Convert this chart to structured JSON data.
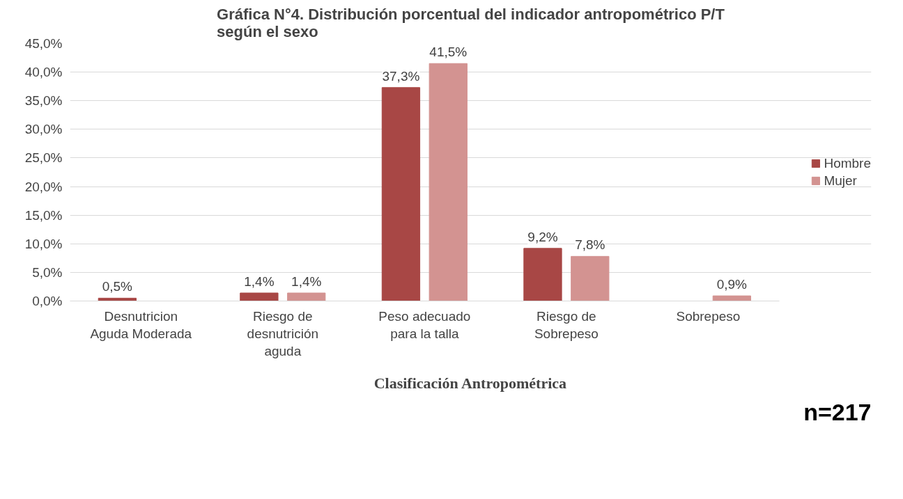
{
  "chart_data": {
    "type": "bar",
    "title": "Gráfica N°4. Distribución porcentual del indicador antropométrico P/T\nsegún el sexo",
    "xlabel": "Clasificación Antropométrica",
    "categories": [
      "Desnutricion\nAguda Moderada",
      "Riesgo de\ndesnutrición\naguda",
      "Peso adecuado\npara la talla",
      "Riesgo de\nSobrepeso",
      "Sobrepeso"
    ],
    "series": [
      {
        "name": "Hombre",
        "color": "#a84745",
        "values": [
          0.5,
          1.4,
          37.3,
          9.2,
          null
        ],
        "value_labels": [
          "0,5%",
          "1,4%",
          "37,3%",
          "9,2%",
          null
        ]
      },
      {
        "name": "Mujer",
        "color": "#d39391",
        "values": [
          null,
          1.4,
          41.5,
          7.8,
          0.9
        ],
        "value_labels": [
          null,
          "1,4%",
          "41,5%",
          "7,8%",
          "0,9%"
        ]
      }
    ],
    "ylim": [
      0,
      45
    ],
    "yticks": [
      {
        "value": 0,
        "label": "0,0%"
      },
      {
        "value": 5,
        "label": "5,0%"
      },
      {
        "value": 10,
        "label": "10,0%"
      },
      {
        "value": 15,
        "label": "15,0%"
      },
      {
        "value": 20,
        "label": "20,0%"
      },
      {
        "value": 25,
        "label": "25,0%"
      },
      {
        "value": 30,
        "label": "30,0%"
      },
      {
        "value": 35,
        "label": "35,0%"
      },
      {
        "value": 40,
        "label": "40,0%"
      },
      {
        "value": 45,
        "label": "45,0%"
      }
    ],
    "grid": "y",
    "legend": "right",
    "annotations": [
      "n=217"
    ]
  }
}
